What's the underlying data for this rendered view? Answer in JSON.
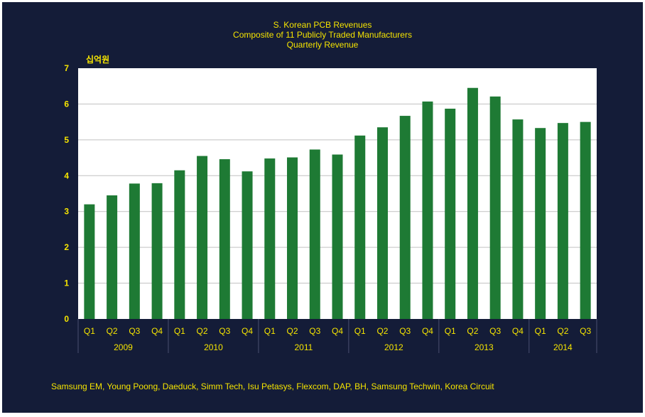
{
  "title_lines": [
    "S. Korean PCB Revenues",
    "Composite of 11 Publicly Traded Manufacturers",
    "Quarterly Revenue"
  ],
  "unit_label": "십억원",
  "footnote": "Samsung EM, Young Poong, Daeduck, Simm Tech, Isu Petasys, Flexcom, DAP, BH, Samsung Techwin, Korea Circuit",
  "colors": {
    "background": "#141c38",
    "plot_area": "#ffffff",
    "bar": "#1e7a34",
    "text": "#f5e400",
    "grid": "#c0c0c0",
    "group_divider": "#4a5070"
  },
  "chart_data": {
    "type": "bar",
    "title": "S. Korean PCB Revenues / Composite of 11 Publicly Traded Manufacturers / Quarterly Revenue",
    "ylabel": "십억원",
    "ylim": [
      0,
      7
    ],
    "yticks": [
      0,
      1,
      2,
      3,
      4,
      5,
      6,
      7
    ],
    "grid": true,
    "legend": "none",
    "groups": [
      {
        "label": "2009",
        "quarters": [
          "Q1",
          "Q2",
          "Q3",
          "Q4"
        ]
      },
      {
        "label": "2010",
        "quarters": [
          "Q1",
          "Q2",
          "Q3",
          "Q4"
        ]
      },
      {
        "label": "2011",
        "quarters": [
          "Q1",
          "Q2",
          "Q3",
          "Q4"
        ]
      },
      {
        "label": "2012",
        "quarters": [
          "Q1",
          "Q2",
          "Q3",
          "Q4"
        ]
      },
      {
        "label": "2013",
        "quarters": [
          "Q1",
          "Q2",
          "Q3",
          "Q4"
        ]
      },
      {
        "label": "2014",
        "quarters": [
          "Q1",
          "Q2",
          "Q3"
        ]
      }
    ],
    "values": [
      3.2,
      3.45,
      3.78,
      3.79,
      4.15,
      4.55,
      4.46,
      4.12,
      4.48,
      4.51,
      4.73,
      4.59,
      5.12,
      5.35,
      5.67,
      6.07,
      5.87,
      6.45,
      6.21,
      5.57,
      5.33,
      5.47,
      5.5
    ]
  }
}
